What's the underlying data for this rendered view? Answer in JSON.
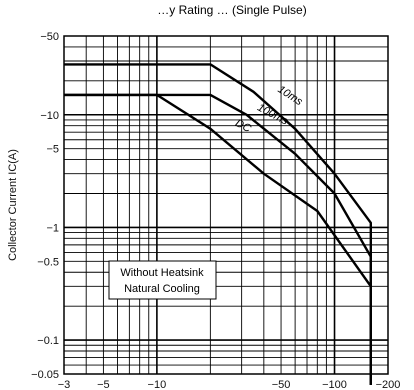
{
  "chart_data": {
    "type": "line",
    "title": "…y Rating … (Single Pulse)",
    "ylabel": "Collector Current  IC(A)",
    "xlabel": "",
    "x_scale": "log",
    "y_scale": "log",
    "xlim": [
      -3,
      -200
    ],
    "ylim": [
      -0.05,
      -50
    ],
    "x_tick_labels": [
      "−3",
      "−5",
      "−10",
      "−50",
      "−100",
      "−200"
    ],
    "y_tick_labels": [
      "−50",
      "−10",
      "−5",
      "−1",
      "−0.5",
      "−0.1",
      "−0.05"
    ],
    "x_ticks": [
      3,
      5,
      10,
      50,
      100,
      200
    ],
    "y_ticks": [
      50,
      10,
      5,
      1,
      0.5,
      0.1,
      0.05
    ],
    "series": [
      {
        "name": "10ms",
        "x": [
          3,
          20,
          35,
          60,
          100,
          160,
          160
        ],
        "y": [
          28,
          28,
          16,
          7.5,
          3,
          1.1,
          0.04
        ]
      },
      {
        "name": "100ms",
        "x": [
          3,
          20,
          32,
          60,
          100,
          160,
          160
        ],
        "y": [
          15,
          15,
          10,
          4.5,
          2,
          0.55,
          0.04
        ]
      },
      {
        "name": "DC",
        "x": [
          3,
          10,
          20,
          40,
          80,
          160,
          160
        ],
        "y": [
          15,
          15,
          7.5,
          3,
          1.4,
          0.3,
          0.04
        ]
      }
    ],
    "annotation": {
      "lines": [
        "Without Heatsink",
        "Natural Cooling"
      ]
    },
    "grid": true,
    "legend": "none"
  }
}
